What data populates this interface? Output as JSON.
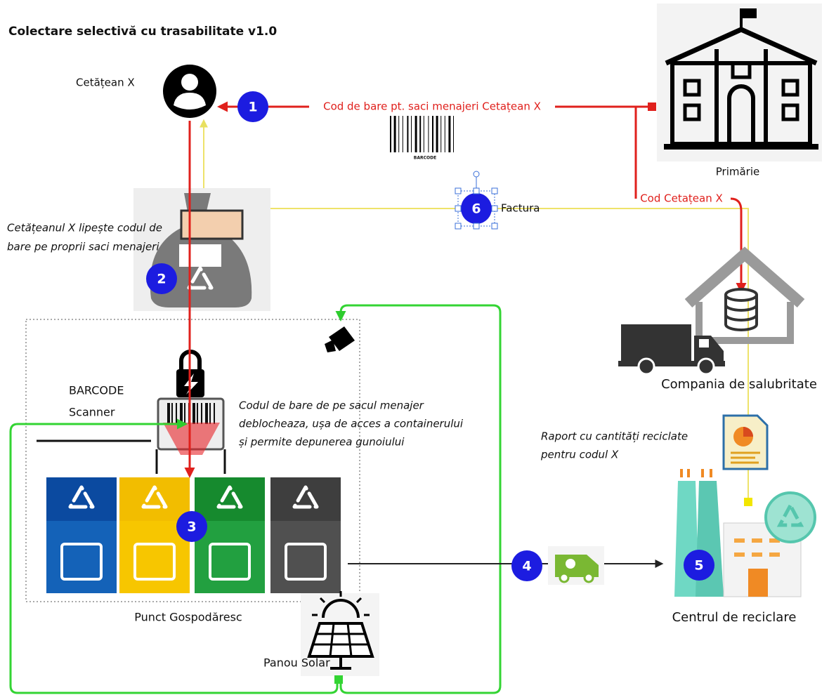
{
  "title": "Colectare selectivă cu trasabilitate v1.0",
  "nodes": {
    "citizen": "Cetățean X",
    "city_hall": "Primărie",
    "sanitation_company": "Compania de salubritate",
    "collection_point": "Punct Gospodăresc",
    "solar_panel": "Panou Solar",
    "recycling_center": "Centrul de reciclare",
    "scanner": [
      "BARCODE",
      "Scanner"
    ]
  },
  "flows": {
    "barcode": "Cod de bare pt. saci menajeri Cetațean X",
    "barcode_image_label": "BARCODE",
    "citizen_code": "Cod Cetațean X",
    "invoice": "Factura"
  },
  "notes": {
    "sticking": [
      "Cetățeanul X lipește codul de",
      "bare pe proprii saci menajeri"
    ],
    "unlock": [
      "Codul de bare de pe sacul menajer",
      "deblocheaza, ușa de acces a containerului",
      "și permite depunerea gunoiului"
    ],
    "report": [
      "Raport cu cantități reciclate",
      "pentru codul X"
    ]
  },
  "steps": [
    1,
    2,
    3,
    4,
    5,
    6
  ]
}
